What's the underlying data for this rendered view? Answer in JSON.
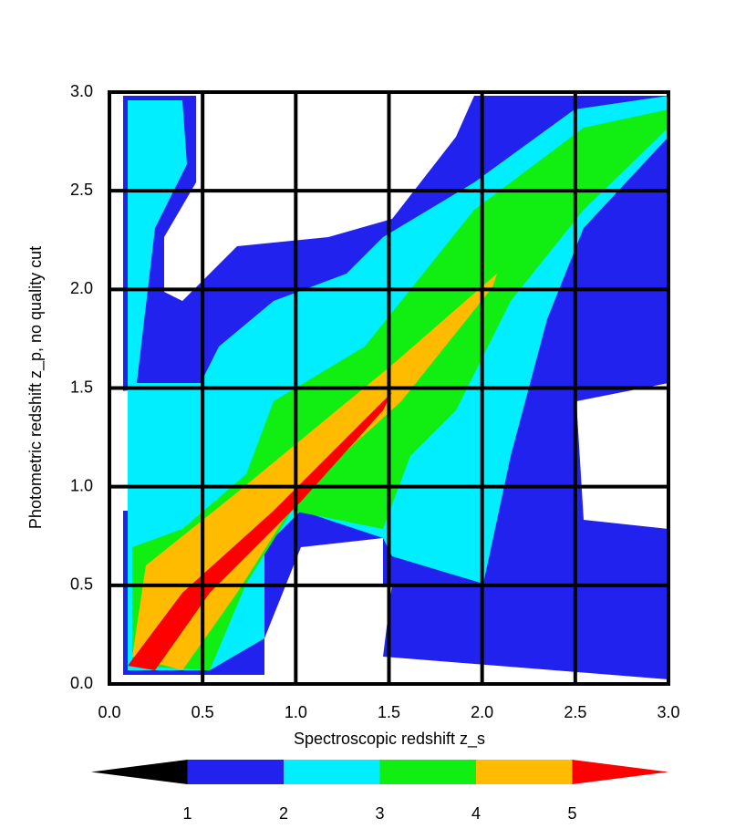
{
  "chart_data": {
    "type": "contour",
    "x_label": "Spectroscopic redshift z_s",
    "y_label": "Photometric redshift z_p, no quality cut",
    "xlim": [
      0,
      3
    ],
    "ylim": [
      0,
      3
    ],
    "xticks": [
      {
        "value": 0,
        "label": "0.0"
      },
      {
        "value": 0.5,
        "label": "0.5"
      },
      {
        "value": 1,
        "label": "1.0"
      },
      {
        "value": 1.5,
        "label": "1.5"
      },
      {
        "value": 2,
        "label": "2.0"
      },
      {
        "value": 2.5,
        "label": "2.5"
      },
      {
        "value": 3,
        "label": "3.0"
      }
    ],
    "yticks": [
      {
        "value": 0,
        "label": "0.0"
      },
      {
        "value": 0.5,
        "label": "0.5"
      },
      {
        "value": 1,
        "label": "1.0"
      },
      {
        "value": 1.5,
        "label": "1.5"
      },
      {
        "value": 2,
        "label": "2.0"
      },
      {
        "value": 2.5,
        "label": "2.5"
      },
      {
        "value": 3,
        "label": "3.0"
      }
    ],
    "grid": true,
    "colorbar": {
      "levels": [
        1,
        2,
        3,
        4,
        5
      ],
      "colors": [
        "#000000",
        "#2222ee",
        "#00eeff",
        "#11ee11",
        "#ffbb00",
        "#ff0000"
      ]
    }
  }
}
